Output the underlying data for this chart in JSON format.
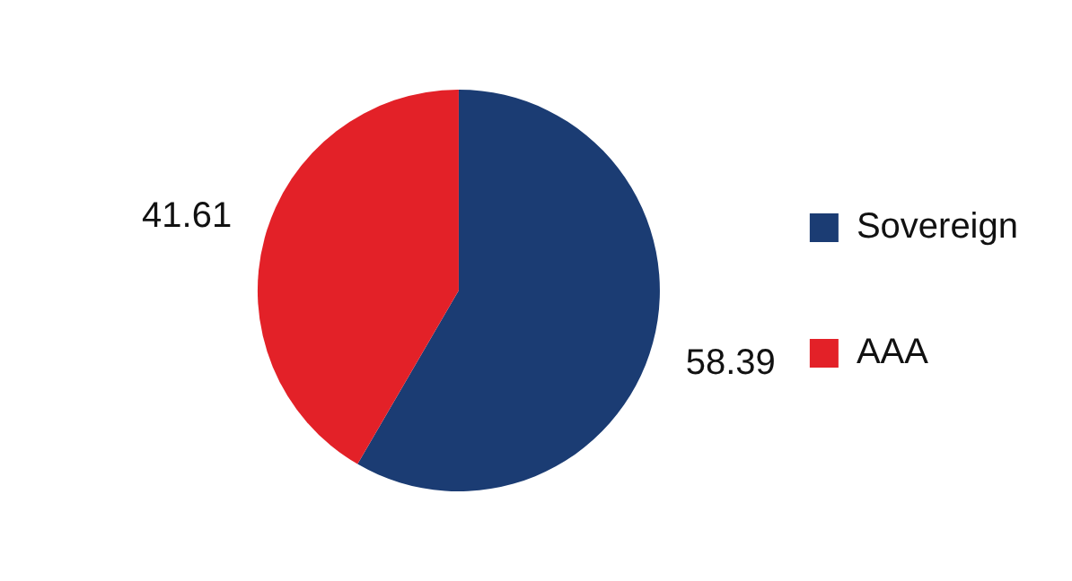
{
  "chart_data": {
    "type": "pie",
    "categories": [
      "Sovereign",
      "AAA"
    ],
    "values": [
      58.39,
      41.61
    ],
    "colors": [
      "#1b3c73",
      "#e32128"
    ],
    "data_labels": true,
    "legend": "right"
  }
}
